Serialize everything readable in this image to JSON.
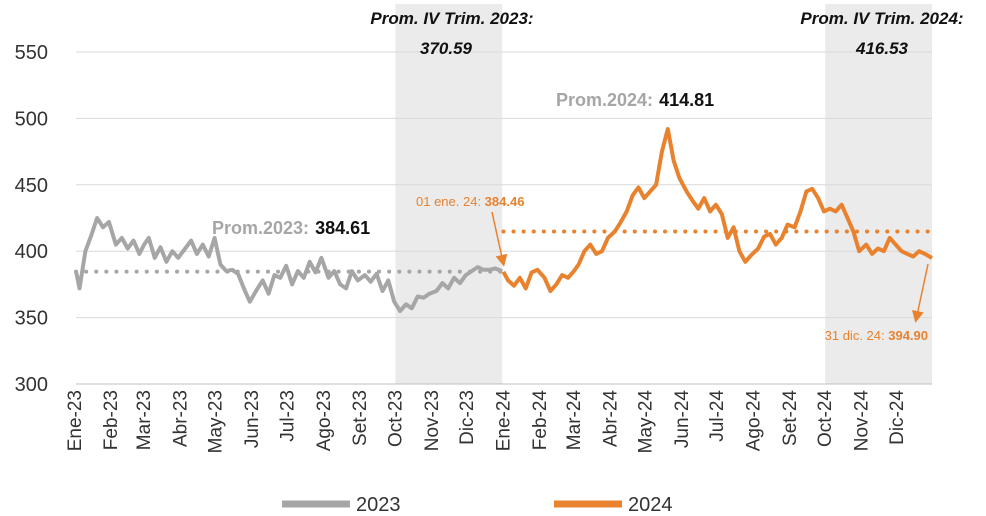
{
  "chart_data": {
    "type": "line",
    "ylim": [
      300,
      550
    ],
    "yticks": [
      300,
      350,
      400,
      450,
      500,
      550
    ],
    "x_start": "2023-01-02",
    "x_end": "2024-12-31",
    "xtick_labels": [
      "Ene-23",
      "Feb-23",
      "Mar-23",
      "Abr-23",
      "May-23",
      "Jun-23",
      "Jul-23",
      "Ago-23",
      "Set-23",
      "Oct-23",
      "Nov-23",
      "Dic-23",
      "Ene-24",
      "Feb-24",
      "Mar-24",
      "Abr-24",
      "May-24",
      "Jun-24",
      "Jul-24",
      "Ago-24",
      "Set-24",
      "Oct-24",
      "Nov-24",
      "Dic-24"
    ],
    "xtick_dates": [
      "2023-01-01",
      "2023-02-01",
      "2023-03-01",
      "2023-04-01",
      "2023-05-01",
      "2023-06-01",
      "2023-07-01",
      "2023-08-01",
      "2023-09-01",
      "2023-10-01",
      "2023-11-01",
      "2023-12-01",
      "2024-01-01",
      "2024-02-01",
      "2024-03-01",
      "2024-04-01",
      "2024-05-01",
      "2024-06-01",
      "2024-07-01",
      "2024-08-01",
      "2024-09-01",
      "2024-10-01",
      "2024-11-01",
      "2024-12-01"
    ],
    "grid": "horizontal",
    "legend_position": "bottom",
    "series": [
      {
        "name": "2023",
        "color": "#a6a6a6",
        "x": [
          "2023-01-02",
          "2023-01-05",
          "2023-01-10",
          "2023-01-15",
          "2023-01-20",
          "2023-01-25",
          "2023-01-30",
          "2023-02-05",
          "2023-02-10",
          "2023-02-15",
          "2023-02-20",
          "2023-02-25",
          "2023-03-01",
          "2023-03-05",
          "2023-03-10",
          "2023-03-15",
          "2023-03-20",
          "2023-03-25",
          "2023-03-30",
          "2023-04-05",
          "2023-04-10",
          "2023-04-15",
          "2023-04-20",
          "2023-04-25",
          "2023-04-30",
          "2023-05-05",
          "2023-05-10",
          "2023-05-15",
          "2023-05-20",
          "2023-05-25",
          "2023-05-30",
          "2023-06-05",
          "2023-06-10",
          "2023-06-15",
          "2023-06-20",
          "2023-06-25",
          "2023-06-30",
          "2023-07-05",
          "2023-07-10",
          "2023-07-15",
          "2023-07-20",
          "2023-07-25",
          "2023-07-30",
          "2023-08-05",
          "2023-08-10",
          "2023-08-15",
          "2023-08-20",
          "2023-08-25",
          "2023-08-30",
          "2023-09-05",
          "2023-09-10",
          "2023-09-15",
          "2023-09-20",
          "2023-09-25",
          "2023-09-30",
          "2023-10-05",
          "2023-10-10",
          "2023-10-15",
          "2023-10-20",
          "2023-10-25",
          "2023-10-30",
          "2023-11-05",
          "2023-11-10",
          "2023-11-15",
          "2023-11-20",
          "2023-11-25",
          "2023-11-30",
          "2023-12-05",
          "2023-12-10",
          "2023-12-15",
          "2023-12-20",
          "2023-12-25",
          "2023-12-31"
        ],
        "values": [
          385,
          372,
          400,
          412,
          425,
          418,
          422,
          405,
          410,
          402,
          408,
          398,
          405,
          410,
          395,
          403,
          392,
          400,
          395,
          402,
          408,
          398,
          405,
          396,
          410,
          390,
          385,
          386,
          383,
          372,
          362,
          371,
          378,
          368,
          382,
          380,
          389,
          375,
          385,
          380,
          392,
          384,
          395,
          380,
          385,
          375,
          372,
          385,
          378,
          382,
          377,
          383,
          370,
          378,
          362,
          355,
          360,
          357,
          366,
          365,
          368,
          370,
          376,
          372,
          380,
          376,
          382,
          385,
          388,
          386,
          386,
          387,
          385
        ]
      },
      {
        "name": "2024",
        "color": "#e8822e",
        "x": [
          "2024-01-01",
          "2024-01-05",
          "2024-01-10",
          "2024-01-15",
          "2024-01-20",
          "2024-01-25",
          "2024-01-30",
          "2024-02-05",
          "2024-02-10",
          "2024-02-15",
          "2024-02-20",
          "2024-02-25",
          "2024-03-01",
          "2024-03-05",
          "2024-03-10",
          "2024-03-15",
          "2024-03-20",
          "2024-03-25",
          "2024-03-30",
          "2024-04-05",
          "2024-04-10",
          "2024-04-15",
          "2024-04-20",
          "2024-04-25",
          "2024-04-30",
          "2024-05-05",
          "2024-05-10",
          "2024-05-15",
          "2024-05-20",
          "2024-05-25",
          "2024-05-30",
          "2024-06-05",
          "2024-06-10",
          "2024-06-15",
          "2024-06-20",
          "2024-06-25",
          "2024-06-30",
          "2024-07-05",
          "2024-07-10",
          "2024-07-15",
          "2024-07-20",
          "2024-07-25",
          "2024-07-30",
          "2024-08-05",
          "2024-08-10",
          "2024-08-15",
          "2024-08-20",
          "2024-08-25",
          "2024-08-30",
          "2024-09-05",
          "2024-09-10",
          "2024-09-15",
          "2024-09-20",
          "2024-09-25",
          "2024-09-30",
          "2024-10-05",
          "2024-10-10",
          "2024-10-15",
          "2024-10-20",
          "2024-10-25",
          "2024-10-30",
          "2024-11-05",
          "2024-11-10",
          "2024-11-15",
          "2024-11-20",
          "2024-11-25",
          "2024-11-30",
          "2024-12-05",
          "2024-12-10",
          "2024-12-15",
          "2024-12-20",
          "2024-12-25",
          "2024-12-31"
        ],
        "values": [
          384.46,
          378,
          374,
          380,
          372,
          384,
          386,
          380,
          370,
          375,
          382,
          380,
          385,
          390,
          400,
          405,
          398,
          400,
          410,
          415,
          422,
          430,
          442,
          448,
          440,
          445,
          450,
          475,
          492,
          468,
          455,
          445,
          438,
          432,
          440,
          430,
          435,
          428,
          410,
          418,
          400,
          392,
          397,
          402,
          411,
          413,
          405,
          410,
          420,
          418,
          430,
          445,
          447,
          440,
          430,
          432,
          430,
          435,
          425,
          415,
          400,
          405,
          398,
          402,
          400,
          410,
          405,
          400,
          398,
          396,
          400,
          398,
          394.9
        ]
      }
    ],
    "annotations": {
      "avg_2023_label": "Prom.2023:",
      "avg_2023_value": "384.61",
      "avg_2023": 384.61,
      "avg_2024_label": "Prom.2024:",
      "avg_2024_value": "414.81",
      "avg_2024": 414.81,
      "q4_2023_title": "Prom. IV Trim. 2023:",
      "q4_2023_value": "370.59",
      "q4_2023_start": "2023-10-01",
      "q4_2023_end": "2023-12-31",
      "q4_2024_title": "Prom. IV Trim. 2024:",
      "q4_2024_value": "416.53",
      "q4_2024_start": "2024-10-01",
      "q4_2024_end": "2024-12-31",
      "start_point_label": "01 ene. 24: ",
      "start_point_value": "384.46",
      "start_point_date": "2024-01-01",
      "end_point_label": "31 dic. 24: ",
      "end_point_value": "394.90",
      "end_point_date": "2024-12-31"
    }
  }
}
